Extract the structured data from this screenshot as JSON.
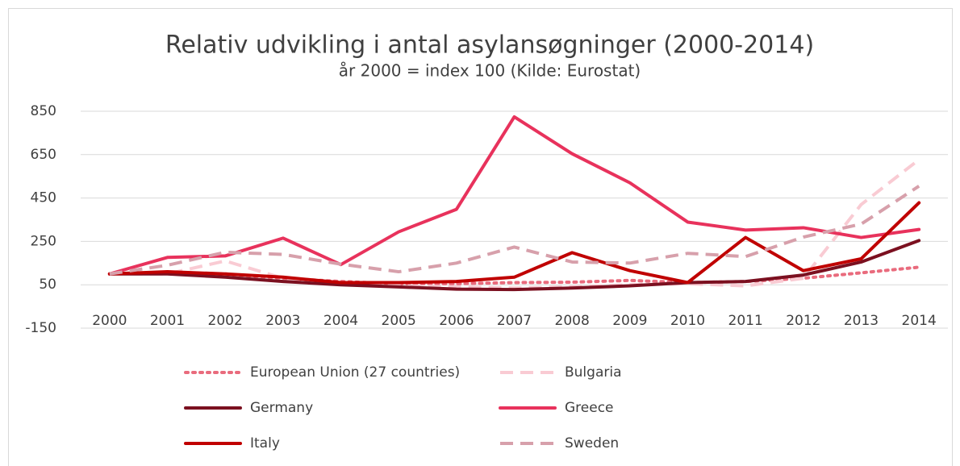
{
  "chart_data": {
    "type": "line",
    "title": "Relativ udvikling i antal asylansøgninger (2000-2014)",
    "subtitle": "år 2000 = index 100 (Kilde: Eurostat)",
    "categories": [
      "2000",
      "2001",
      "2002",
      "2003",
      "2004",
      "2005",
      "2006",
      "2007",
      "2008",
      "2009",
      "2010",
      "2011",
      "2012",
      "2013",
      "2014"
    ],
    "ylim": [
      -150,
      850
    ],
    "yticks": [
      -150,
      50,
      250,
      450,
      650,
      850
    ],
    "grid": true,
    "legend": "bottom",
    "series": [
      {
        "name": "European Union (27 countries)",
        "color": "#e96b7d",
        "style": "dotted",
        "values": [
          100,
          105,
          100,
          80,
          65,
          55,
          55,
          60,
          62,
          70,
          60,
          65,
          80,
          105,
          131
        ]
      },
      {
        "name": "Bulgaria",
        "color": "#f9cbd3",
        "style": "dashed",
        "values": [
          100,
          100,
          160,
          80,
          60,
          45,
          40,
          35,
          40,
          50,
          55,
          45,
          80,
          420,
          627
        ]
      },
      {
        "name": "Germany",
        "color": "#7b1020",
        "style": "solid",
        "values": [
          100,
          100,
          85,
          65,
          50,
          40,
          30,
          28,
          35,
          45,
          60,
          65,
          95,
          155,
          254
        ]
      },
      {
        "name": "Greece",
        "color": "#e8325c",
        "style": "solid",
        "values": [
          100,
          176,
          183,
          265,
          143,
          294,
          398,
          824,
          654,
          520,
          339,
          302,
          313,
          268,
          305
        ]
      },
      {
        "name": "Italy",
        "color": "#c00000",
        "style": "solid",
        "values": [
          100,
          110,
          100,
          85,
          60,
          60,
          65,
          85,
          198,
          115,
          60,
          268,
          115,
          170,
          428
        ]
      },
      {
        "name": "Sweden",
        "color": "#d7a0ab",
        "style": "dashed",
        "values": [
          100,
          140,
          200,
          190,
          145,
          110,
          150,
          224,
          155,
          150,
          195,
          180,
          270,
          330,
          505
        ]
      }
    ]
  }
}
